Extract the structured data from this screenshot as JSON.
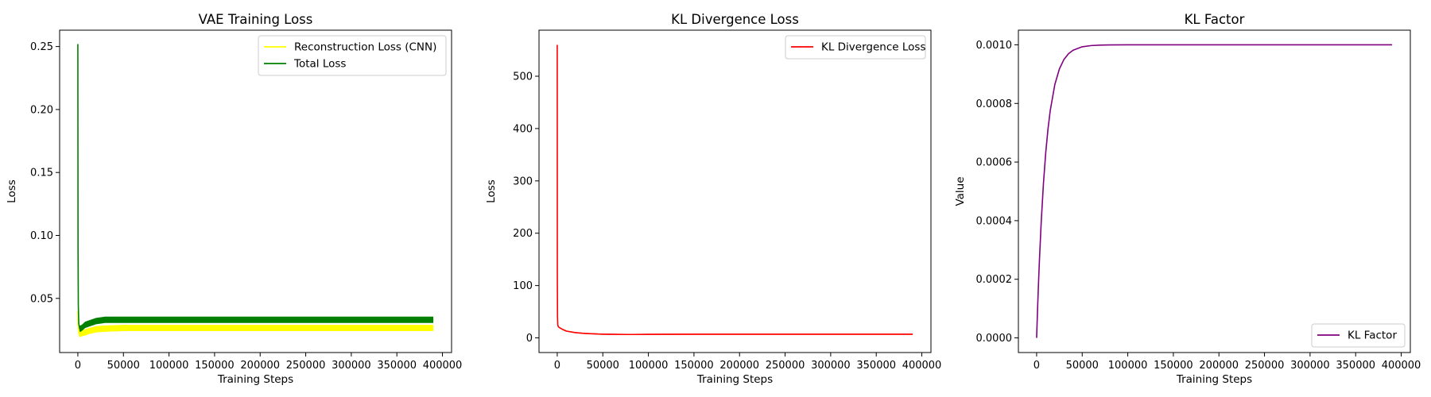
{
  "chart_data": [
    {
      "type": "line",
      "title": "VAE Training Loss",
      "xlabel": "Training Steps",
      "ylabel": "Loss",
      "xlim": [
        -20000,
        410000
      ],
      "ylim": [
        0.007,
        0.263
      ],
      "xticks": [
        0,
        50000,
        100000,
        150000,
        200000,
        250000,
        300000,
        350000,
        400000
      ],
      "yticks": [
        0.05,
        0.1,
        0.15,
        0.2,
        0.25
      ],
      "ytick_labels": [
        "0.05",
        "0.10",
        "0.15",
        "0.20",
        "0.25"
      ],
      "grid": false,
      "legend": "top-right",
      "series": [
        {
          "name": "Reconstruction Loss (CNN)",
          "color": "#ffff00",
          "x": [
            0,
            200,
            500,
            1000,
            2000,
            3000,
            5000,
            8000,
            12000,
            20000,
            30000,
            50000,
            100000,
            200000,
            300000,
            390000
          ],
          "y": [
            0.04,
            0.032,
            0.026,
            0.023,
            0.0215,
            0.022,
            0.0225,
            0.023,
            0.024,
            0.0255,
            0.026,
            0.0265,
            0.0265,
            0.0265,
            0.0265,
            0.0265
          ],
          "band": 0.0025
        },
        {
          "name": "Total Loss",
          "color": "#008000",
          "x": [
            0,
            200,
            500,
            1000,
            2000,
            3000,
            5000,
            8000,
            12000,
            20000,
            30000,
            50000,
            100000,
            200000,
            300000,
            390000
          ],
          "y": [
            0.252,
            0.09,
            0.045,
            0.03,
            0.026,
            0.026,
            0.027,
            0.029,
            0.03,
            0.032,
            0.033,
            0.033,
            0.033,
            0.033,
            0.033,
            0.033
          ],
          "band": 0.0025
        }
      ]
    },
    {
      "type": "line",
      "title": "KL Divergence Loss",
      "xlabel": "Training Steps",
      "ylabel": "Loss",
      "xlim": [
        -20000,
        410000
      ],
      "ylim": [
        -28,
        588
      ],
      "xticks": [
        0,
        50000,
        100000,
        150000,
        200000,
        250000,
        300000,
        350000,
        400000
      ],
      "yticks": [
        0,
        100,
        200,
        300,
        400,
        500
      ],
      "ytick_labels": [
        "0",
        "100",
        "200",
        "300",
        "400",
        "500"
      ],
      "grid": false,
      "legend": "top-right",
      "series": [
        {
          "name": "KL Divergence Loss",
          "color": "#ff0000",
          "x": [
            0,
            100,
            300,
            600,
            1000,
            2000,
            5000,
            10000,
            20000,
            30000,
            50000,
            80000,
            100000,
            150000,
            200000,
            300000,
            390000
          ],
          "y": [
            560,
            120,
            40,
            25,
            22,
            20,
            17,
            13,
            10,
            8.5,
            7,
            6.5,
            6.8,
            7,
            7,
            7,
            7
          ],
          "band": 1.0
        }
      ]
    },
    {
      "type": "line",
      "title": "KL Factor",
      "xlabel": "Training Steps",
      "ylabel": "Value",
      "xlim": [
        -20000,
        410000
      ],
      "ylim": [
        -5e-05,
        0.00105
      ],
      "xticks": [
        0,
        50000,
        100000,
        150000,
        200000,
        250000,
        300000,
        350000,
        400000
      ],
      "yticks": [
        0.0,
        0.0002,
        0.0004,
        0.0006,
        0.0008,
        0.001
      ],
      "ytick_labels": [
        "0.0000",
        "0.0002",
        "0.0004",
        "0.0006",
        "0.0008",
        "0.0010"
      ],
      "grid": false,
      "legend": "bottom-right",
      "series": [
        {
          "name": "KL Factor",
          "color": "#800080",
          "x": [
            0,
            1000,
            2000,
            3000,
            5000,
            7500,
            10000,
            12500,
            15000,
            20000,
            25000,
            30000,
            35000,
            40000,
            50000,
            60000,
            70000,
            80000,
            100000,
            150000,
            200000,
            250000,
            300000,
            350000,
            390000
          ],
          "y": [
            0.0,
            9.51e-05,
            0.0001813,
            0.0002592,
            0.0003935,
            0.0005276,
            0.0006321,
            0.0007135,
            0.0007769,
            0.0008647,
            0.0009179,
            0.0009502,
            0.0009698,
            0.0009817,
            0.0009933,
            0.0009975,
            0.0009991,
            0.0009997,
            0.00099995,
            0.001,
            0.001,
            0.001,
            0.001,
            0.001,
            0.001
          ]
        }
      ]
    }
  ]
}
